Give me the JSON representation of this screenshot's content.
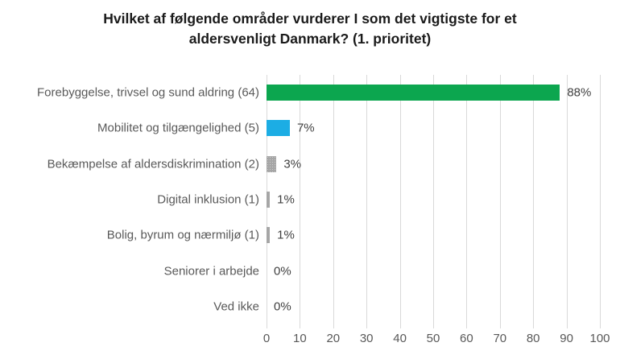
{
  "title": "Hvilket af følgende områder vurderer I som det vigtigste for et aldersvenligt Danmark? (1. prioritet)",
  "chart_data": {
    "type": "bar",
    "orientation": "horizontal",
    "title": "Hvilket af følgende områder vurderer I som det vigtigste for et aldersvenligt Danmark? (1. prioritet)",
    "categories": [
      "Forebyggelse, trivsel og sund aldring (64)",
      "Mobilitet og tilgængelighed (5)",
      "Bekæmpelse af aldersdiskrimination (2)",
      "Digital inklusion (1)",
      "Bolig, byrum og nærmiljø (1)",
      "Seniorer i arbejde",
      "Ved ikke"
    ],
    "values": [
      88,
      7,
      3,
      1,
      1,
      0,
      0
    ],
    "value_labels": [
      "88%",
      "7%",
      "3%",
      "1%",
      "1%",
      "0%",
      "0%"
    ],
    "bar_colors": [
      "#0ca64f",
      "#1cade4",
      "#a6a6a6",
      "#a6a6a6",
      "#a6a6a6",
      null,
      null
    ],
    "bar_patterns": [
      false,
      false,
      true,
      false,
      false,
      false,
      false
    ],
    "xlabel": "",
    "ylabel": "",
    "xlim": [
      0,
      100
    ],
    "xticks": [
      0,
      10,
      20,
      30,
      40,
      50,
      60,
      70,
      80,
      90,
      100
    ],
    "grid": "vertical-major",
    "legend": "none"
  },
  "colors": {
    "green_bar": "#0ca64f",
    "blue_bar": "#1cade4",
    "gray_bar": "#a6a6a6",
    "gridline": "#d9d9d9",
    "category_label": "#595959",
    "value_label": "#404040",
    "tick_label": "#595959",
    "title_text": "#1a1a1a",
    "background": "#ffffff"
  }
}
